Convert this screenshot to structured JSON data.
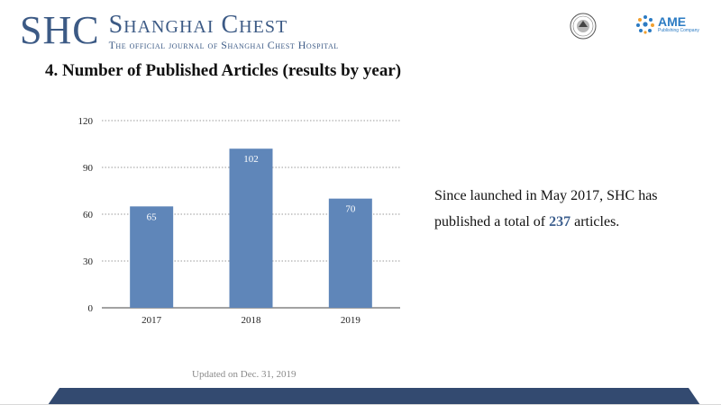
{
  "header": {
    "logo_abbr": "SHC",
    "logo_name": "Shanghai Chest",
    "logo_tagline": "The official journal of Shanghai Chest Hospital",
    "ame_name": "AME",
    "ame_tagline": "Publishing Company"
  },
  "title": "4. Number of Published Articles (results by year)",
  "summary": {
    "text_before": "Since launched in May 2017, SHC has published a total of ",
    "total": "237",
    "text_after": " articles."
  },
  "updated": "Updated on Dec. 31, 2019",
  "colors": {
    "bar": "#5f86b9",
    "brand": "#3c5a85",
    "footer": "#334a70"
  },
  "chart_data": {
    "type": "bar",
    "title": "",
    "xlabel": "",
    "ylabel": "",
    "categories": [
      "2017",
      "2018",
      "2019"
    ],
    "values": [
      65,
      102,
      70
    ],
    "data_labels": [
      "65",
      "102",
      "70"
    ],
    "ylim": [
      0,
      120
    ],
    "yticks": [
      0,
      30,
      60,
      90,
      120
    ],
    "ytick_labels": [
      "0",
      "30",
      "60",
      "90",
      "120"
    ],
    "grid": true,
    "legend": "none"
  }
}
